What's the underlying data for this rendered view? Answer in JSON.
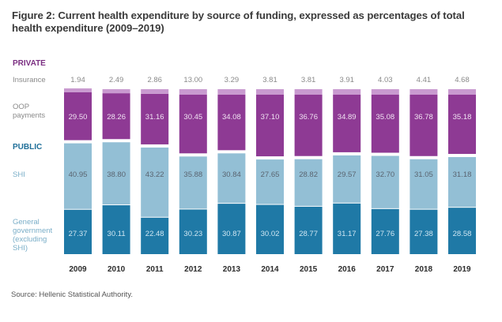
{
  "title": "Figure 2: Current health expenditure by source of funding, expressed as percentages of total health expenditure (2009–2019)",
  "source": "Source: Hellenic Statistical Authority.",
  "colors": {
    "insurance": "#c99ad0",
    "oop": "#8e3a94",
    "shi": "#93bfd5",
    "general_government": "#1f79a6",
    "private_label": "#7b2f82",
    "public_label": "#1f6f99",
    "row_label": "#8a8a8a",
    "value_dark": "#5a6470",
    "value_light": "#f0e2f2"
  },
  "chart_data": {
    "type": "bar",
    "stacked": true,
    "title": "Figure 2: Current health expenditure by source of funding, expressed as percentages of total health expenditure (2009–2019)",
    "xlabel": "",
    "ylabel": "",
    "categories": [
      "2009",
      "2010",
      "2011",
      "2012",
      "2013",
      "2014",
      "2015",
      "2016",
      "2017",
      "2018",
      "2019"
    ],
    "groups": [
      {
        "name": "PRIVATE",
        "series": [
          "Insurance",
          "OOP payments"
        ]
      },
      {
        "name": "PUBLIC",
        "series": [
          "SHI",
          "General government (excluding SHI)"
        ]
      }
    ],
    "series": [
      {
        "name": "General government (excluding SHI)",
        "group": "PUBLIC",
        "values": [
          27.37,
          30.11,
          22.48,
          30.23,
          30.87,
          30.02,
          28.77,
          31.17,
          27.76,
          27.38,
          28.58
        ]
      },
      {
        "name": "SHI",
        "group": "PUBLIC",
        "values": [
          40.95,
          38.8,
          43.22,
          35.88,
          30.84,
          27.65,
          28.82,
          29.57,
          32.7,
          31.05,
          31.18
        ]
      },
      {
        "name": "OOP payments",
        "group": "PRIVATE",
        "values": [
          29.5,
          28.26,
          31.16,
          30.45,
          34.08,
          37.1,
          36.76,
          34.89,
          35.08,
          36.78,
          35.18
        ]
      },
      {
        "name": "Insurance",
        "group": "PRIVATE",
        "values": [
          1.94,
          2.49,
          2.86,
          13.0,
          3.29,
          3.81,
          3.81,
          3.91,
          4.03,
          4.41,
          4.68
        ]
      }
    ],
    "value_labels": {
      "Insurance": [
        "1.94",
        "2.49",
        "2.86",
        "13.00",
        "3.29",
        "3.81",
        "3.81",
        "3.91",
        "4.03",
        "4.41",
        "4.68"
      ],
      "OOP payments": [
        "29.50",
        "28.26",
        "31.16",
        "30.45",
        "34.08",
        "37.10",
        "36.76",
        "34.89",
        "35.08",
        "36.78",
        "35.18"
      ],
      "SHI": [
        "40.95",
        "38.80",
        "43.22",
        "35.88",
        "30.84",
        "27.65",
        "28.82",
        "29.57",
        "32.70",
        "31.05",
        "31.18"
      ],
      "General government (excluding SHI)": [
        "27.37",
        "30.11",
        "22.48",
        "30.23",
        "30.87",
        "30.02",
        "28.77",
        "31.17",
        "27.76",
        "27.38",
        "28.58"
      ]
    },
    "row_labels": {
      "private_header": "PRIVATE",
      "insurance": "Insurance",
      "oop": [
        "OOP",
        "payments"
      ],
      "public_header": "PUBLIC",
      "shi": "SHI",
      "general_government": [
        "General",
        "government",
        "(excluding",
        "SHI)"
      ]
    },
    "ylim": [
      0,
      100
    ],
    "grid": false,
    "legend": "left row labels"
  }
}
